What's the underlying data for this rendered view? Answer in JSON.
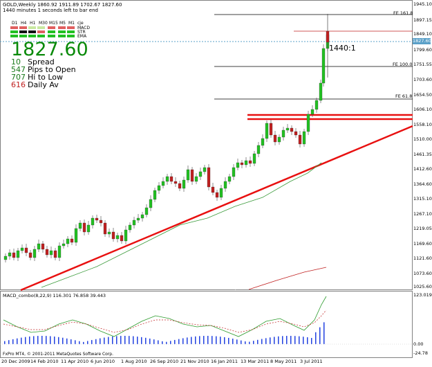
{
  "header": {
    "symbol_line": "GOLD,Weekly  1860.92 1911.89 1702.67 1827.60",
    "timer_line": "1440 minutes 1 seconds left to bar end"
  },
  "timeframes": [
    "D1",
    "H4",
    "H1",
    "M30",
    "M15",
    "M5",
    "M1"
  ],
  "timeframe_suffix": "cje",
  "indicators": [
    "MACD",
    "STR",
    "EMA"
  ],
  "price_panel": {
    "current_price": "1827.60",
    "stats": [
      {
        "value": "10",
        "label": "Spread",
        "color": "#1a7a1a"
      },
      {
        "value": "547",
        "label": "Pips to Open",
        "color": "#1a7a1a"
      },
      {
        "value": "707",
        "label": "Hi to Low",
        "color": "#1a7a1a"
      },
      {
        "value": "616",
        "label": "Daily Av",
        "color": "#c02020"
      }
    ]
  },
  "ratio_label": "1440:1",
  "fib_labels": [
    "FE 161.8",
    "FE 100.0",
    "FE 61.8"
  ],
  "y_axis_labels": [
    "1945.10",
    "1897.15",
    "1849.10",
    "1827.60",
    "1799.60",
    "1751.55",
    "1703.60",
    "1654.50",
    "1606.10",
    "1558.10",
    "1510.00",
    "1461.35",
    "1412.60",
    "1364.60",
    "1315.10",
    "1267.10",
    "1219.05",
    "1169.60",
    "1121.60",
    "1073.60",
    "1025.60"
  ],
  "macd": {
    "title": "MACD_combo(8,22,9) 116.301 76.858 39.443",
    "axis_labels": [
      "123.019",
      "0.00",
      "-24.78"
    ]
  },
  "x_axis_labels": [
    "20 Dec 2009",
    "14 Feb 2010",
    "11 Apr 2010",
    "6 Jun 2010",
    "1 Aug 2010",
    "26 Sep 2010",
    "21 Nov 2010",
    "16 Jan 2011",
    "13 Mar 2011",
    "8 May 2011",
    "3 Jul 2011"
  ],
  "copyright": "FxPro MT4, © 2001-2011 MetaQuotes Software Corp.",
  "colors": {
    "bull": "#22c022",
    "bear": "#c02020",
    "trendline": "#e81010",
    "ma_green": "#3a9a3a",
    "bg_chart": "#ffffff"
  }
}
